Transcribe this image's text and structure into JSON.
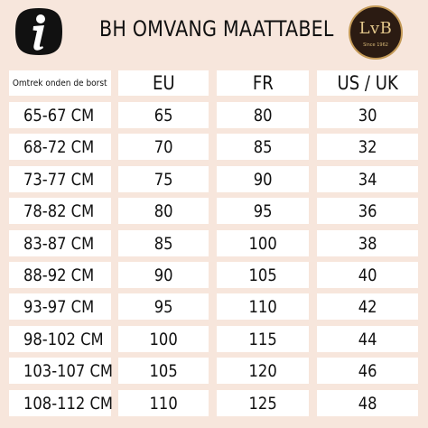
{
  "header": {
    "title": "BH OMVANG MAATTABEL",
    "info_icon": "info-icon",
    "logo_text": "LvB",
    "logo_tagline": "Since 1962"
  },
  "table": {
    "columns": [
      "Omtrek onden de borst",
      "EU",
      "FR",
      "US / UK"
    ],
    "rows": [
      [
        "65-67 CM",
        "65",
        "80",
        "30"
      ],
      [
        "68-72 CM",
        "70",
        "85",
        "32"
      ],
      [
        "73-77 CM",
        "75",
        "90",
        "34"
      ],
      [
        "78-82 CM",
        "80",
        "95",
        "36"
      ],
      [
        "83-87 CM",
        "85",
        "100",
        "38"
      ],
      [
        "88-92 CM",
        "90",
        "105",
        "40"
      ],
      [
        "93-97 CM",
        "95",
        "110",
        "42"
      ],
      [
        "98-102 CM",
        "100",
        "115",
        "44"
      ],
      [
        "103-107 CM",
        "105",
        "120",
        "46"
      ],
      [
        "108-112 CM",
        "110",
        "125",
        "48"
      ]
    ]
  },
  "colors": {
    "background": "#f7e6dc",
    "cell": "#ffffff",
    "text": "#111111",
    "logo_bg": "#2b1b12",
    "logo_gold": "#c49a57"
  }
}
